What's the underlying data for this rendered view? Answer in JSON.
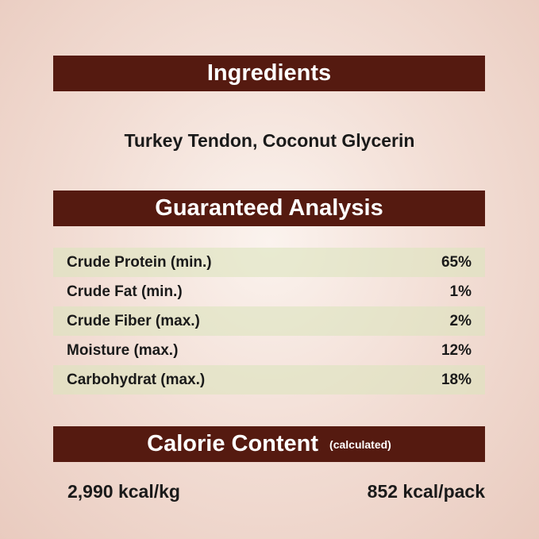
{
  "ingredients": {
    "title": "Ingredients",
    "text": "Turkey Tendon, Coconut Glycerin"
  },
  "analysis": {
    "title": "Guaranteed Analysis",
    "rows": [
      {
        "label": "Crude Protein (min.)",
        "value": "65%"
      },
      {
        "label": "Crude Fat (min.)",
        "value": "1%"
      },
      {
        "label": "Crude Fiber (max.)",
        "value": "2%"
      },
      {
        "label": "Moisture (max.)",
        "value": "12%"
      },
      {
        "label": "Carbohydrat (max.)",
        "value": "18%"
      }
    ]
  },
  "calorie": {
    "title": "Calorie Content",
    "note": "(calculated)",
    "per_kg": "2,990 kcal/kg",
    "per_pack": "852 kcal/pack"
  },
  "colors": {
    "banner": "#551a10",
    "row_shade": "#dfe4c2"
  }
}
